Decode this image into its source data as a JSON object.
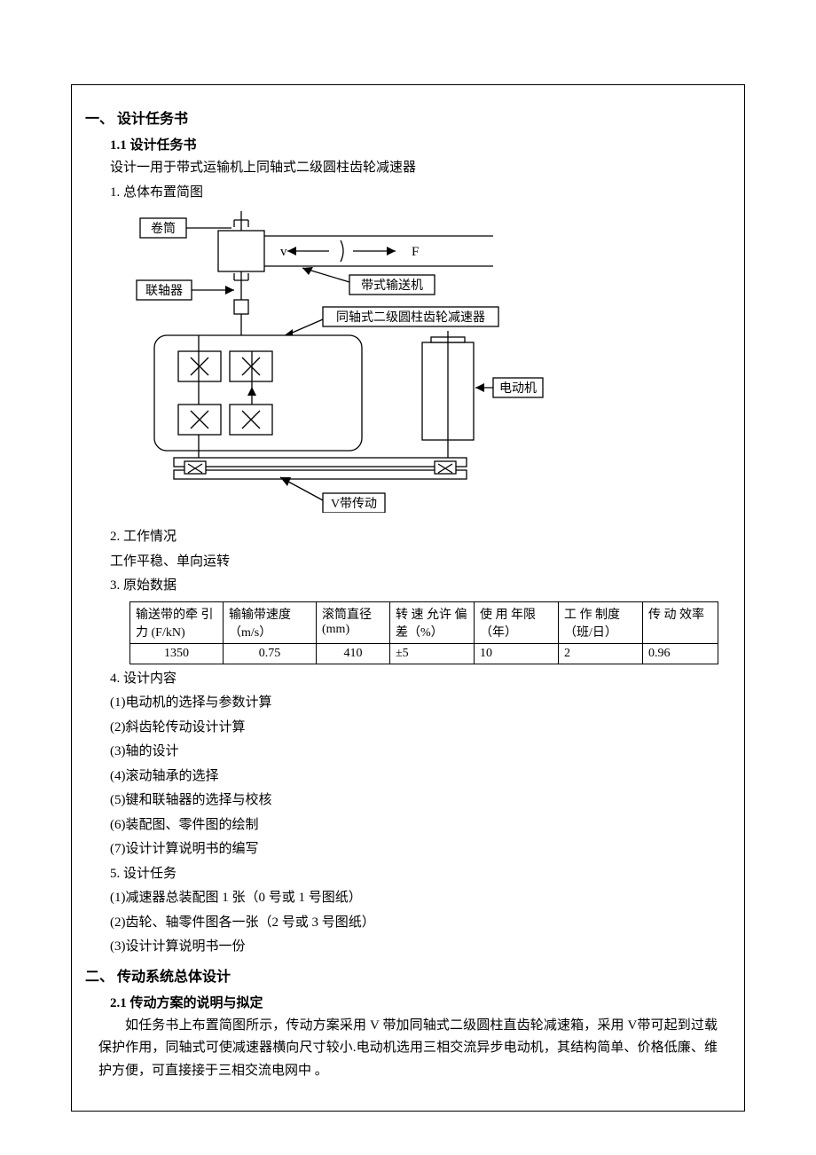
{
  "section1": {
    "title": "一、    设计任务书",
    "sub1_title": "1.1 设计任务书",
    "sub1_desc": "设计一用于带式运输机上同轴式二级圆柱齿轮减速器",
    "item1": "1.  总体布置简图",
    "item2": "2.  工作情况",
    "item2_desc": "工作平稳、单向运转",
    "item3": "3.    原始数据",
    "item4": "4.  设计内容",
    "item4_list": [
      "(1)电动机的选择与参数计算",
      "(2)斜齿轮传动设计计算",
      "(3)轴的设计",
      "(4)滚动轴承的选择",
      "(5)键和联轴器的选择与校核",
      "(6)装配图、零件图的绘制",
      "(7)设计计算说明书的编写"
    ],
    "item5": "5.  设计任务",
    "item5_list": [
      "(1)减速器总装配图 1 张（0 号或 1 号图纸）",
      "(2)齿轮、轴零件图各一张（2 号或 3 号图纸）",
      "(3)设计计算说明书一份"
    ]
  },
  "diagram_labels": {
    "juantong": "卷筒",
    "lianzhouqi": "联轴器",
    "v": "v",
    "F": "F",
    "daishi": "带式输送机",
    "tongzhou": "同轴式二级圆柱齿轮减速器",
    "diandongji": "电动机",
    "vdai": "V带传动"
  },
  "table": {
    "headers": [
      "输送带的牵 引 力 (F/kN)",
      "输输带速度（m/s）",
      "滚筒直径(mm)",
      "转 速 允许 偏 差（%）",
      "使 用 年限（年）",
      "工 作 制度（班/日）",
      "传 动 效率"
    ],
    "row": [
      "1350",
      "0.75",
      "410",
      "±5",
      "10",
      "2",
      "0.96"
    ]
  },
  "section2": {
    "title": "二、 传动系统总体设计",
    "sub1_title": "2.1 传动方案的说明与拟定",
    "para": "如任务书上布置简图所示，传动方案采用 V 带加同轴式二级圆柱直齿轮减速箱，采用 V带可起到过载保护作用，同轴式可使减速器横向尺寸较小.电动机选用三相交流异步电动机，其结构简单、价格低廉、维护方便，可直接接于三相交流电网中 。"
  },
  "style": {
    "stroke": "#000000",
    "fill_white": "#ffffff",
    "font_label": "15px SimSun"
  }
}
